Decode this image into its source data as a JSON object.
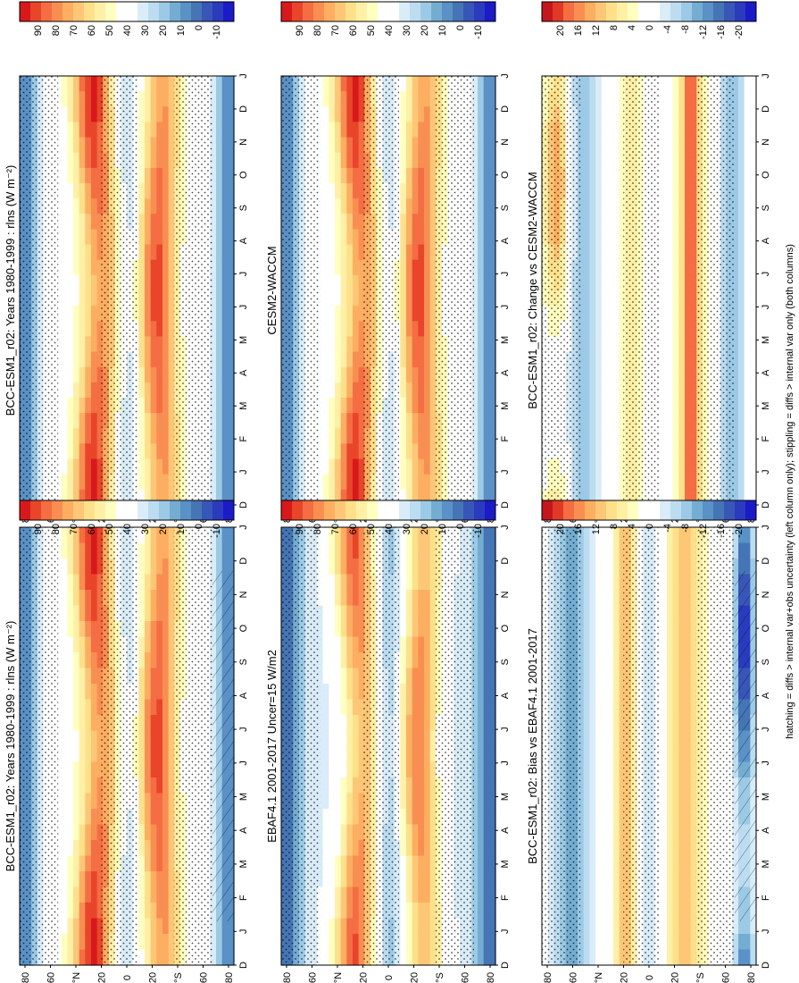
{
  "figure": {
    "footnote": "hatching = diffs > internal var+obs uncertainty (left column only); stippling = diffs > internal var only (both columns)",
    "month_labels": [
      "D",
      "J",
      "F",
      "M",
      "A",
      "M",
      "J",
      "J",
      "A",
      "S",
      "O",
      "N",
      "D",
      "J"
    ],
    "lat_labels": [
      "80",
      "60",
      "°N",
      "20",
      "0",
      "20",
      "°S",
      "60",
      "80"
    ],
    "colorbar_abs_labels": [
      "90",
      "80",
      "70",
      "60",
      "50",
      "40",
      "30",
      "20",
      "10",
      "0",
      "-10"
    ],
    "colorbar_diff_labels": [
      "20",
      "16",
      "12",
      "8",
      "4",
      "0",
      "-4",
      "-8",
      "-12",
      "-16",
      "-20"
    ]
  },
  "chart_data": [
    {
      "id": "top-right",
      "type": "heatmap",
      "title": "BCC-ESM1_r02: Years 1980-1999 : rlns (W m⁻²)",
      "kind": "abs",
      "x": [
        "D",
        "J",
        "F",
        "M",
        "A",
        "M",
        "J",
        "J",
        "A",
        "S",
        "O",
        "N",
        "D",
        "J"
      ],
      "y": [
        "80",
        "60",
        "°N",
        "20",
        "0",
        "20",
        "°S",
        "60",
        "80"
      ],
      "colorbar_range": [
        -10,
        90
      ],
      "colors": [
        "#d7191c",
        "#f46d43",
        "#fdae61",
        "#fee08b",
        "#ffffbf",
        "#ffffff",
        "#c6e2f5",
        "#74add1",
        "#4575b4",
        "#2b3bbd"
      ]
    },
    {
      "id": "middle-right",
      "type": "heatmap",
      "title": "CESM2-WACCM",
      "kind": "abs",
      "x": [
        "D",
        "J",
        "F",
        "M",
        "A",
        "M",
        "J",
        "J",
        "A",
        "S",
        "O",
        "N",
        "D",
        "J"
      ],
      "y": [
        "80",
        "60",
        "°N",
        "20",
        "0",
        "20",
        "°S",
        "60",
        "80"
      ],
      "colorbar_range": [
        -10,
        90
      ]
    },
    {
      "id": "bottom-right",
      "type": "heatmap",
      "title": "BCC-ESM1_r02: Change vs CESM2-WACCM",
      "kind": "diff",
      "x": [
        "D",
        "J",
        "F",
        "M",
        "A",
        "M",
        "J",
        "J",
        "A",
        "S",
        "O",
        "N",
        "D",
        "J"
      ],
      "y": [
        "80",
        "60",
        "°N",
        "20",
        "0",
        "20",
        "°S",
        "60",
        "80"
      ],
      "colorbar_range": [
        -20,
        20
      ]
    },
    {
      "id": "top-left",
      "type": "heatmap",
      "title": "BCC-ESM1_r02: Years 1980-1999 : rlns (W m⁻²)",
      "kind": "abs",
      "x": [
        "D",
        "J",
        "F",
        "M",
        "A",
        "M",
        "J",
        "J",
        "A",
        "S",
        "O",
        "N",
        "D",
        "J"
      ],
      "y": [
        "80",
        "60",
        "°N",
        "20",
        "0",
        "20",
        "°S",
        "60",
        "80"
      ],
      "colorbar_range": [
        -10,
        90
      ]
    },
    {
      "id": "middle-left",
      "type": "heatmap",
      "title": "EBAF4.1 2001-2017 Uncer=15 W/m2",
      "kind": "abs",
      "x": [
        "D",
        "J",
        "F",
        "M",
        "A",
        "M",
        "J",
        "J",
        "A",
        "S",
        "O",
        "N",
        "D",
        "J"
      ],
      "y": [
        "80",
        "60",
        "°N",
        "20",
        "0",
        "20",
        "°S",
        "60",
        "80"
      ],
      "colorbar_range": [
        -10,
        90
      ]
    },
    {
      "id": "bottom-left",
      "type": "heatmap",
      "title": "BCC-ESM1_r02: Bias vs EBAF4.1 2001-2017",
      "kind": "diff",
      "x": [
        "D",
        "J",
        "F",
        "M",
        "A",
        "M",
        "J",
        "J",
        "A",
        "S",
        "O",
        "N",
        "D",
        "J"
      ],
      "y": [
        "80",
        "60",
        "°N",
        "20",
        "0",
        "20",
        "°S",
        "60",
        "80"
      ],
      "colorbar_range": [
        -20,
        20
      ]
    }
  ]
}
